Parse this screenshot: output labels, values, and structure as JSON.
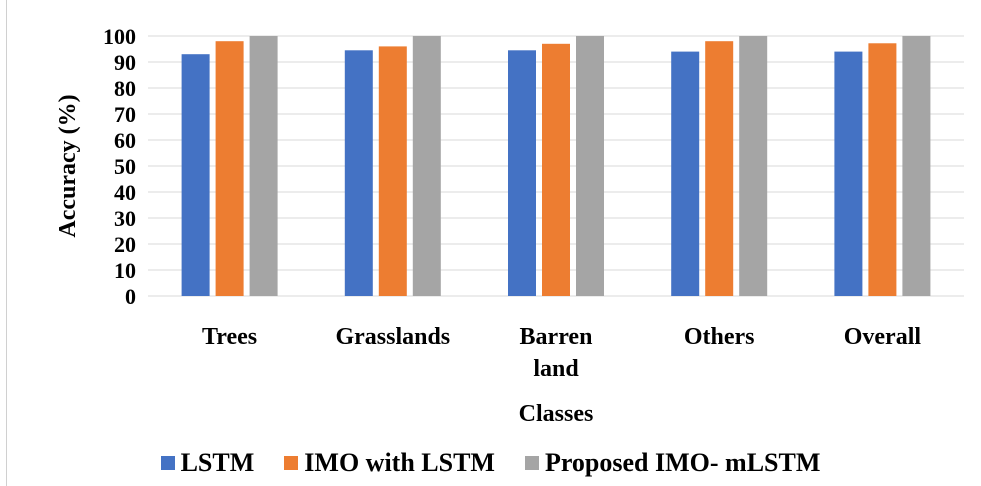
{
  "chart_data": {
    "type": "bar",
    "categories": [
      [
        "Trees"
      ],
      [
        "Grasslands"
      ],
      [
        "Barren",
        "land"
      ],
      [
        "Others"
      ],
      [
        "Overall"
      ]
    ],
    "series": [
      {
        "name": "LSTM",
        "values": [
          93,
          94.5,
          94.5,
          94,
          94
        ],
        "color": "#4472C4"
      },
      {
        "name": "IMO with LSTM",
        "values": [
          98,
          96,
          97,
          98,
          97.2
        ],
        "color": "#ED7D31"
      },
      {
        "name": "Proposed IMO- mLSTM",
        "values": [
          100,
          100,
          100,
          100,
          100
        ],
        "color": "#A5A5A5"
      }
    ],
    "yticks": [
      "0",
      "10",
      "20",
      "30",
      "40",
      "50",
      "60",
      "70",
      "80",
      "90",
      "100"
    ],
    "ylim": [
      0,
      100
    ],
    "xlabel": "Classes",
    "ylabel": "Accuracy (%)",
    "grid": true,
    "legend_position": "bottom"
  }
}
